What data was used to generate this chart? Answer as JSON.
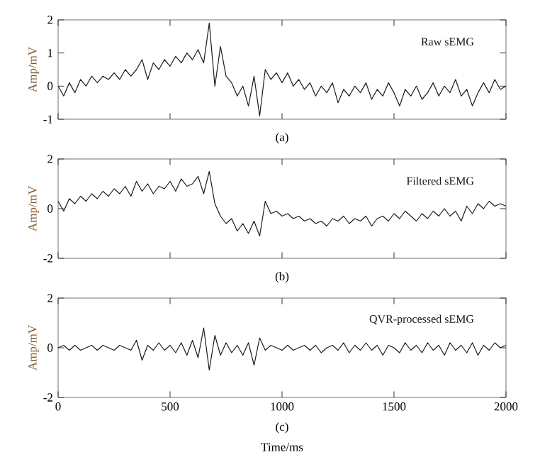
{
  "chart_data": [
    {
      "type": "line",
      "annotations": [
        "(a)"
      ],
      "ylabel": "Amp/mV",
      "xlim": [
        0,
        2000
      ],
      "ylim": [
        -1,
        2
      ],
      "xticks": [
        0,
        500,
        1000,
        1500,
        2000
      ],
      "yticks": [
        -1,
        0,
        1,
        2
      ],
      "tick_labels": "y",
      "x": [
        0,
        25,
        50,
        75,
        100,
        125,
        150,
        175,
        200,
        225,
        250,
        275,
        300,
        325,
        350,
        375,
        400,
        425,
        450,
        475,
        500,
        525,
        550,
        575,
        600,
        625,
        650,
        675,
        700,
        725,
        750,
        775,
        800,
        825,
        850,
        875,
        900,
        925,
        950,
        975,
        1000,
        1025,
        1050,
        1075,
        1100,
        1125,
        1150,
        1175,
        1200,
        1225,
        1250,
        1275,
        1300,
        1325,
        1350,
        1375,
        1400,
        1425,
        1450,
        1475,
        1500,
        1525,
        1550,
        1575,
        1600,
        1625,
        1650,
        1675,
        1700,
        1725,
        1750,
        1775,
        1800,
        1825,
        1850,
        1875,
        1900,
        1925,
        1950,
        1975,
        2000
      ],
      "series": [
        {
          "name": "Raw sEMG",
          "color": "#1a1a1a",
          "values": [
            0.0,
            -0.3,
            0.1,
            -0.2,
            0.2,
            0.0,
            0.3,
            0.1,
            0.3,
            0.2,
            0.4,
            0.2,
            0.5,
            0.3,
            0.5,
            0.8,
            0.2,
            0.7,
            0.5,
            0.8,
            0.6,
            0.9,
            0.7,
            1.0,
            0.8,
            1.1,
            0.7,
            1.9,
            0.0,
            1.2,
            0.3,
            0.1,
            -0.3,
            0.0,
            -0.6,
            0.3,
            -0.9,
            0.5,
            0.2,
            0.4,
            0.1,
            0.4,
            0.0,
            0.2,
            -0.1,
            0.1,
            -0.3,
            0.0,
            -0.2,
            0.1,
            -0.5,
            -0.1,
            -0.3,
            0.0,
            -0.2,
            0.1,
            -0.4,
            -0.1,
            -0.3,
            0.1,
            -0.2,
            -0.6,
            -0.1,
            -0.3,
            0.0,
            -0.4,
            -0.2,
            0.1,
            -0.3,
            0.0,
            -0.2,
            0.2,
            -0.3,
            -0.1,
            -0.6,
            -0.2,
            0.1,
            -0.2,
            0.2,
            -0.1,
            0.0
          ]
        }
      ]
    },
    {
      "type": "line",
      "annotations": [
        "(b)"
      ],
      "ylabel": "Amp/mV",
      "xlim": [
        0,
        2000
      ],
      "ylim": [
        -2,
        2
      ],
      "xticks": [
        0,
        500,
        1000,
        1500,
        2000
      ],
      "yticks": [
        -2,
        0,
        2
      ],
      "tick_labels": "y",
      "x": [
        0,
        25,
        50,
        75,
        100,
        125,
        150,
        175,
        200,
        225,
        250,
        275,
        300,
        325,
        350,
        375,
        400,
        425,
        450,
        475,
        500,
        525,
        550,
        575,
        600,
        625,
        650,
        675,
        700,
        725,
        750,
        775,
        800,
        825,
        850,
        875,
        900,
        925,
        950,
        975,
        1000,
        1025,
        1050,
        1075,
        1100,
        1125,
        1150,
        1175,
        1200,
        1225,
        1250,
        1275,
        1300,
        1325,
        1350,
        1375,
        1400,
        1425,
        1450,
        1475,
        1500,
        1525,
        1550,
        1575,
        1600,
        1625,
        1650,
        1675,
        1700,
        1725,
        1750,
        1775,
        1800,
        1825,
        1850,
        1875,
        1900,
        1925,
        1950,
        1975,
        2000
      ],
      "series": [
        {
          "name": "Filtered sEMG",
          "color": "#1a1a1a",
          "values": [
            0.3,
            -0.1,
            0.4,
            0.2,
            0.5,
            0.3,
            0.6,
            0.4,
            0.7,
            0.5,
            0.8,
            0.6,
            0.9,
            0.5,
            1.1,
            0.7,
            1.0,
            0.6,
            0.9,
            0.8,
            1.1,
            0.7,
            1.2,
            0.9,
            1.0,
            1.3,
            0.6,
            1.5,
            0.2,
            -0.3,
            -0.6,
            -0.4,
            -0.9,
            -0.6,
            -1.0,
            -0.5,
            -1.1,
            0.3,
            -0.2,
            -0.1,
            -0.3,
            -0.2,
            -0.4,
            -0.3,
            -0.5,
            -0.4,
            -0.6,
            -0.5,
            -0.7,
            -0.4,
            -0.5,
            -0.3,
            -0.6,
            -0.4,
            -0.5,
            -0.3,
            -0.7,
            -0.4,
            -0.3,
            -0.5,
            -0.2,
            -0.4,
            -0.1,
            -0.3,
            -0.5,
            -0.2,
            -0.4,
            -0.1,
            -0.3,
            0.0,
            -0.3,
            -0.1,
            -0.5,
            0.1,
            -0.2,
            0.2,
            0.0,
            0.3,
            0.1,
            0.2,
            0.1
          ]
        }
      ]
    },
    {
      "type": "line",
      "annotations": [
        "(c)"
      ],
      "xlabel": "Time/ms",
      "ylabel": "Amp/mV",
      "xlim": [
        0,
        2000
      ],
      "ylim": [
        -2,
        2
      ],
      "xticks": [
        0,
        500,
        1000,
        1500,
        2000
      ],
      "yticks": [
        -2,
        0,
        2
      ],
      "x": [
        0,
        25,
        50,
        75,
        100,
        125,
        150,
        175,
        200,
        225,
        250,
        275,
        300,
        325,
        350,
        375,
        400,
        425,
        450,
        475,
        500,
        525,
        550,
        575,
        600,
        625,
        650,
        675,
        700,
        725,
        750,
        775,
        800,
        825,
        850,
        875,
        900,
        925,
        950,
        975,
        1000,
        1025,
        1050,
        1075,
        1100,
        1125,
        1150,
        1175,
        1200,
        1225,
        1250,
        1275,
        1300,
        1325,
        1350,
        1375,
        1400,
        1425,
        1450,
        1475,
        1500,
        1525,
        1550,
        1575,
        1600,
        1625,
        1650,
        1675,
        1700,
        1725,
        1750,
        1775,
        1800,
        1825,
        1850,
        1875,
        1900,
        1925,
        1950,
        1975,
        2000
      ],
      "series": [
        {
          "name": "QVR-processed sEMG",
          "color": "#1a1a1a",
          "values": [
            0.0,
            0.1,
            -0.1,
            0.1,
            -0.1,
            0.0,
            0.1,
            -0.1,
            0.1,
            0.0,
            -0.1,
            0.1,
            0.0,
            -0.1,
            0.3,
            -0.5,
            0.1,
            -0.1,
            0.2,
            -0.1,
            0.1,
            -0.2,
            0.2,
            -0.3,
            0.3,
            -0.4,
            0.8,
            -0.9,
            0.5,
            -0.3,
            0.2,
            -0.2,
            0.1,
            -0.3,
            0.2,
            -0.7,
            0.4,
            -0.1,
            0.1,
            0.0,
            -0.1,
            0.1,
            -0.1,
            0.0,
            0.1,
            -0.1,
            0.1,
            -0.2,
            0.0,
            0.1,
            -0.1,
            0.2,
            -0.2,
            0.1,
            -0.1,
            0.2,
            -0.1,
            0.1,
            -0.3,
            0.1,
            0.0,
            -0.2,
            0.2,
            -0.1,
            0.1,
            -0.2,
            0.2,
            -0.1,
            0.1,
            -0.3,
            0.2,
            -0.1,
            0.1,
            -0.2,
            0.2,
            -0.3,
            0.1,
            -0.1,
            0.2,
            0.0,
            0.1
          ]
        }
      ]
    }
  ]
}
